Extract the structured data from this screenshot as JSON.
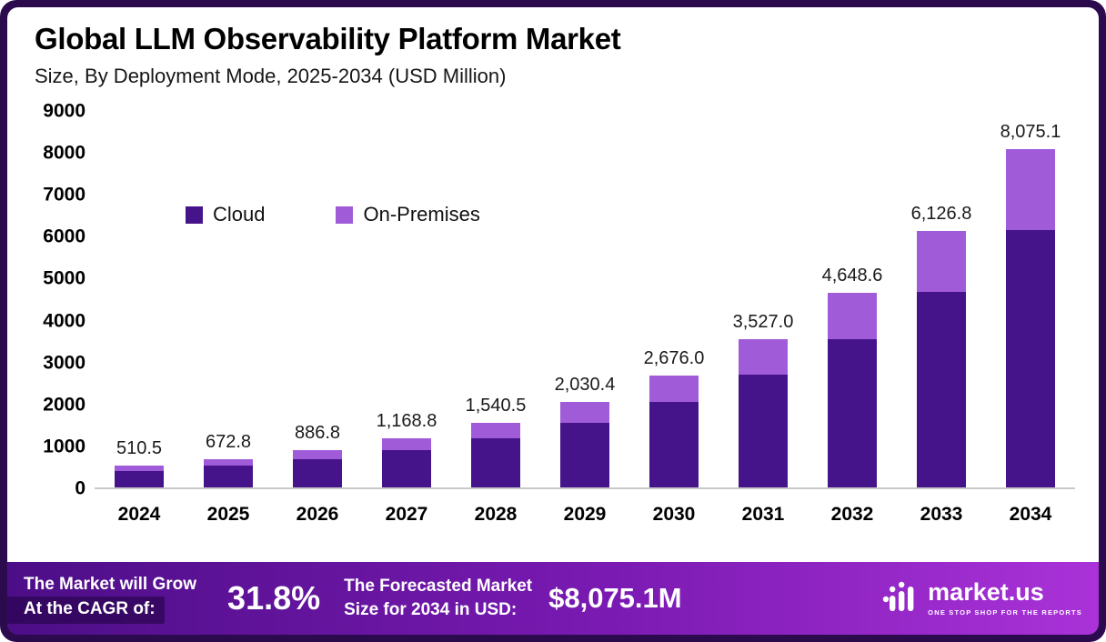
{
  "header": {
    "title": "Global LLM Observability Platform Market",
    "subtitle": "Size, By Deployment Mode, 2025-2034 (USD Million)"
  },
  "chart_data": {
    "type": "bar",
    "stacked": true,
    "title": "Global LLM Observability Platform Market Size, By Deployment Mode, 2025-2034 (USD Million)",
    "categories": [
      "2024",
      "2025",
      "2026",
      "2027",
      "2028",
      "2029",
      "2030",
      "2031",
      "2032",
      "2033",
      "2034"
    ],
    "series": [
      {
        "name": "Cloud",
        "color": "#45148a",
        "values": [
          388.0,
          511.0,
          674.0,
          888.0,
          1171.0,
          1543.0,
          2034.0,
          2681.0,
          3533.0,
          4656.0,
          6137.0
        ]
      },
      {
        "name": "On-Premises",
        "color": "#a05bd8",
        "values": [
          122.5,
          161.8,
          212.8,
          280.8,
          369.5,
          487.4,
          642.0,
          846.0,
          1115.6,
          1470.8,
          1938.1
        ]
      }
    ],
    "totals": [
      510.5,
      672.8,
      886.8,
      1168.8,
      1540.5,
      2030.4,
      2676.0,
      3527.0,
      4648.6,
      6126.8,
      8075.1
    ],
    "total_labels": [
      "510.5",
      "672.8",
      "886.8",
      "1,168.8",
      "1,540.5",
      "2,030.4",
      "2,676.0",
      "3,527.0",
      "4,648.6",
      "6,126.8",
      "8,075.1"
    ],
    "ylim": [
      0,
      9000
    ],
    "yticks": [
      9000,
      8000,
      7000,
      6000,
      5000,
      4000,
      3000,
      2000,
      1000,
      0
    ],
    "grid": false,
    "legend_position": "inside-top-left"
  },
  "footer": {
    "cagr_label_line1": "The Market will Grow",
    "cagr_label_line2": "At the CAGR of:",
    "cagr_value": "31.8%",
    "forecast_label_line1": "The Forecasted Market",
    "forecast_label_line2": "Size for 2034 in USD:",
    "forecast_value": "$8,075.1M",
    "brand_name": "market.us",
    "brand_tagline": "ONE STOP SHOP FOR THE REPORTS"
  },
  "colors": {
    "cloud": "#45148a",
    "on_premises": "#a05bd8",
    "frame": "#2b0a4d",
    "footer_gradient_start": "#4c0e87",
    "footer_gradient_end": "#aa32d8",
    "baseline": "#c9c9c9"
  }
}
